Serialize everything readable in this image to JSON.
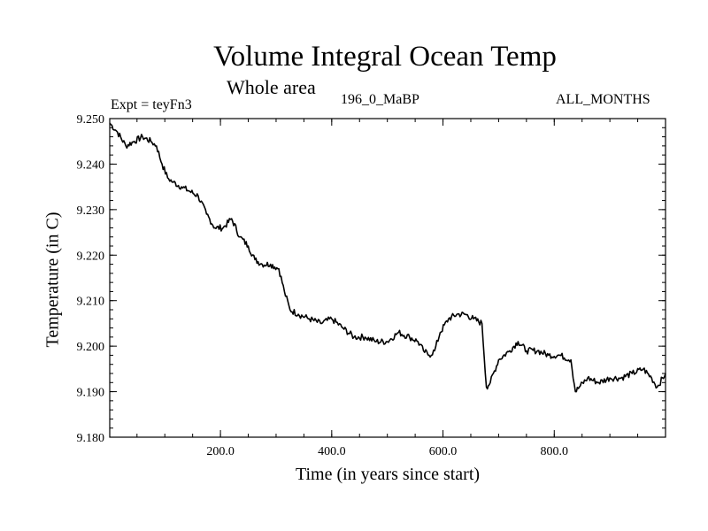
{
  "chart_data": {
    "type": "line",
    "title": "Volume Integral Ocean Temp",
    "subtitle": "Whole area",
    "expt_label": "Expt = teyFn3",
    "period_label": "196_0_MaBP",
    "months_label": "ALL_MONTHS",
    "xlabel": "Time (in years since start)",
    "ylabel": "Temperature (in C)",
    "xlim": [
      1,
      1000
    ],
    "ylim": [
      9.18,
      9.25
    ],
    "x_ticks": [
      200,
      400,
      600,
      800
    ],
    "x_tick_labels": [
      "200.0",
      "400.0",
      "600.0",
      "800.0"
    ],
    "y_ticks": [
      9.18,
      9.19,
      9.2,
      9.21,
      9.22,
      9.23,
      9.24,
      9.25
    ],
    "y_tick_labels": [
      "9.180",
      "9.190",
      "9.200",
      "9.210",
      "9.220",
      "9.230",
      "9.240",
      "9.250"
    ],
    "grid": false,
    "series": [
      {
        "name": "Volume Integral Ocean Temp",
        "color": "#000000",
        "x": [
          1,
          15,
          30,
          45,
          60,
          75,
          85,
          95,
          105,
          115,
          130,
          145,
          160,
          175,
          190,
          205,
          220,
          235,
          250,
          262,
          275,
          290,
          305,
          315,
          325,
          340,
          360,
          380,
          400,
          420,
          440,
          460,
          480,
          500,
          520,
          540,
          555,
          565,
          575,
          585,
          595,
          610,
          625,
          640,
          655,
          670,
          678,
          685,
          700,
          720,
          735,
          750,
          770,
          790,
          810,
          830,
          838,
          845,
          860,
          880,
          900,
          920,
          940,
          960,
          975,
          985,
          1000
        ],
        "y": [
          9.249,
          9.247,
          9.244,
          9.245,
          9.246,
          9.245,
          9.244,
          9.24,
          9.237,
          9.236,
          9.235,
          9.234,
          9.233,
          9.229,
          9.226,
          9.226,
          9.228,
          9.224,
          9.222,
          9.219,
          9.218,
          9.218,
          9.217,
          9.212,
          9.208,
          9.207,
          9.206,
          9.205,
          9.206,
          9.204,
          9.202,
          9.202,
          9.201,
          9.201,
          9.203,
          9.202,
          9.201,
          9.199,
          9.198,
          9.199,
          9.203,
          9.206,
          9.207,
          9.207,
          9.206,
          9.205,
          9.191,
          9.192,
          9.197,
          9.199,
          9.201,
          9.199,
          9.199,
          9.198,
          9.198,
          9.197,
          9.19,
          9.191,
          9.193,
          9.192,
          9.193,
          9.193,
          9.194,
          9.195,
          9.193,
          9.191,
          9.194
        ]
      }
    ]
  }
}
